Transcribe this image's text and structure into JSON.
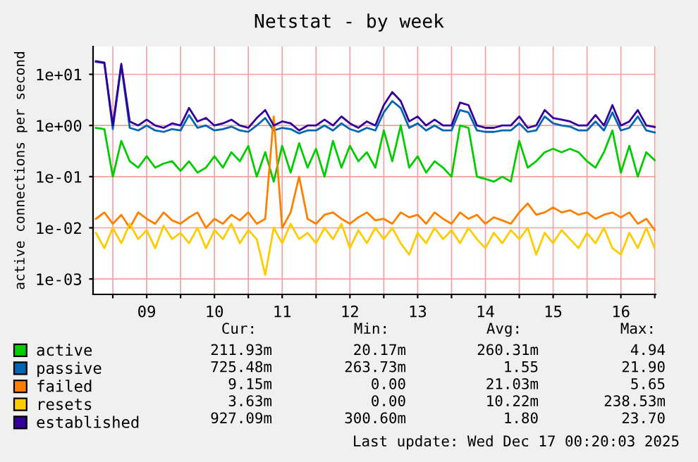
{
  "chart_data": {
    "type": "line",
    "title": "Netstat - by week",
    "ylabel": "active connections per second",
    "x": [
      "2025-12-08T18:00",
      "2025-12-08T21:00",
      "2025-12-09T00:00",
      "2025-12-09T03:00",
      "2025-12-09T06:00",
      "2025-12-09T09:00",
      "2025-12-09T12:00",
      "2025-12-09T15:00",
      "2025-12-09T18:00",
      "2025-12-09T21:00",
      "2025-12-10T00:00",
      "2025-12-10T03:00",
      "2025-12-10T06:00",
      "2025-12-10T09:00",
      "2025-12-10T12:00",
      "2025-12-10T15:00",
      "2025-12-10T18:00",
      "2025-12-10T21:00",
      "2025-12-11T00:00",
      "2025-12-11T03:00",
      "2025-12-11T06:00",
      "2025-12-11T09:00",
      "2025-12-11T12:00",
      "2025-12-11T15:00",
      "2025-12-11T18:00",
      "2025-12-11T21:00",
      "2025-12-12T00:00",
      "2025-12-12T03:00",
      "2025-12-12T06:00",
      "2025-12-12T09:00",
      "2025-12-12T12:00",
      "2025-12-12T15:00",
      "2025-12-12T18:00",
      "2025-12-12T21:00",
      "2025-12-13T00:00",
      "2025-12-13T03:00",
      "2025-12-13T06:00",
      "2025-12-13T09:00",
      "2025-12-13T12:00",
      "2025-12-13T15:00",
      "2025-12-13T18:00",
      "2025-12-13T21:00",
      "2025-12-14T00:00",
      "2025-12-14T03:00",
      "2025-12-14T06:00",
      "2025-12-14T09:00",
      "2025-12-14T12:00",
      "2025-12-14T15:00",
      "2025-12-14T18:00",
      "2025-12-14T21:00",
      "2025-12-15T00:00",
      "2025-12-15T03:00",
      "2025-12-15T06:00",
      "2025-12-15T09:00",
      "2025-12-15T12:00",
      "2025-12-15T15:00",
      "2025-12-15T18:00",
      "2025-12-15T21:00",
      "2025-12-16T00:00",
      "2025-12-16T03:00",
      "2025-12-16T06:00",
      "2025-12-16T09:00",
      "2025-12-16T12:00",
      "2025-12-16T15:00",
      "2025-12-16T18:00",
      "2025-12-16T21:00",
      "2025-12-17T00:00"
    ],
    "series": [
      {
        "name": "active",
        "color": "#00cc00",
        "values": [
          0.9,
          0.85,
          0.1,
          0.5,
          0.2,
          0.15,
          0.25,
          0.15,
          0.18,
          0.2,
          0.13,
          0.2,
          0.12,
          0.15,
          0.25,
          0.15,
          0.3,
          0.2,
          0.4,
          0.1,
          0.3,
          0.08,
          0.4,
          0.12,
          0.45,
          0.15,
          0.35,
          0.1,
          0.5,
          0.15,
          0.4,
          0.2,
          0.3,
          0.15,
          0.8,
          0.2,
          1.0,
          0.15,
          0.25,
          0.12,
          0.2,
          0.15,
          0.1,
          1.0,
          0.9,
          0.1,
          0.09,
          0.08,
          0.1,
          0.08,
          0.5,
          0.15,
          0.2,
          0.3,
          0.35,
          0.3,
          0.35,
          0.3,
          0.2,
          0.15,
          0.3,
          0.8,
          0.12,
          0.4,
          0.1,
          0.3,
          0.21
        ]
      },
      {
        "name": "passive",
        "color": "#0066b3",
        "values": [
          17.5,
          16.5,
          0.85,
          15,
          0.9,
          0.8,
          1.0,
          0.8,
          0.75,
          0.85,
          0.8,
          1.6,
          0.9,
          1.0,
          0.8,
          0.85,
          0.95,
          0.8,
          0.75,
          1.0,
          1.4,
          0.8,
          0.9,
          0.85,
          0.7,
          0.8,
          0.8,
          1.0,
          0.8,
          1.1,
          0.85,
          0.75,
          0.9,
          0.8,
          1.8,
          3.0,
          2.2,
          0.9,
          1.1,
          0.8,
          1.0,
          0.8,
          0.8,
          2.0,
          1.8,
          0.8,
          0.75,
          0.75,
          0.8,
          0.8,
          1.1,
          0.75,
          0.8,
          1.5,
          1.1,
          1.0,
          0.95,
          0.8,
          0.8,
          1.2,
          0.8,
          1.8,
          0.8,
          0.9,
          1.5,
          0.8,
          0.73
        ]
      },
      {
        "name": "failed",
        "color": "#ff8000",
        "values": [
          0.015,
          0.02,
          0.012,
          0.018,
          0.01,
          0.02,
          0.015,
          0.012,
          0.02,
          0.014,
          0.012,
          0.016,
          0.02,
          0.01,
          0.015,
          0.012,
          0.018,
          0.014,
          0.02,
          0.012,
          0.015,
          1.5,
          0.01,
          0.02,
          0.1,
          0.015,
          0.012,
          0.018,
          0.02,
          0.015,
          0.012,
          0.016,
          0.02,
          0.014,
          0.015,
          0.012,
          0.02,
          0.016,
          0.018,
          0.012,
          0.02,
          0.015,
          0.012,
          0.02,
          0.015,
          0.018,
          0.012,
          0.016,
          0.014,
          0.012,
          0.02,
          0.03,
          0.018,
          0.02,
          0.025,
          0.02,
          0.022,
          0.018,
          0.02,
          0.015,
          0.018,
          0.02,
          0.016,
          0.02,
          0.012,
          0.015,
          0.009
        ]
      },
      {
        "name": "resets",
        "color": "#ffcc00",
        "values": [
          0.008,
          0.004,
          0.01,
          0.005,
          0.012,
          0.006,
          0.009,
          0.004,
          0.011,
          0.006,
          0.008,
          0.005,
          0.01,
          0.004,
          0.009,
          0.006,
          0.012,
          0.005,
          0.009,
          0.006,
          0.0012,
          0.01,
          0.005,
          0.012,
          0.006,
          0.008,
          0.005,
          0.01,
          0.006,
          0.012,
          0.004,
          0.009,
          0.005,
          0.01,
          0.006,
          0.01,
          0.005,
          0.003,
          0.008,
          0.005,
          0.01,
          0.006,
          0.009,
          0.005,
          0.01,
          0.006,
          0.004,
          0.008,
          0.005,
          0.009,
          0.006,
          0.01,
          0.003,
          0.008,
          0.005,
          0.009,
          0.006,
          0.004,
          0.008,
          0.005,
          0.01,
          0.004,
          0.003,
          0.008,
          0.004,
          0.01,
          0.004
        ]
      },
      {
        "name": "established",
        "color": "#330099",
        "values": [
          18,
          17,
          1.0,
          16,
          1.2,
          1.0,
          1.3,
          1.0,
          0.9,
          1.1,
          1.0,
          2.2,
          1.2,
          1.4,
          1.0,
          1.1,
          1.3,
          1.0,
          0.9,
          1.4,
          2.0,
          1.0,
          1.2,
          1.1,
          0.8,
          1.0,
          1.0,
          1.3,
          1.0,
          1.5,
          1.1,
          0.9,
          1.2,
          1.0,
          2.5,
          4.5,
          3.0,
          1.2,
          1.5,
          1.0,
          1.3,
          1.0,
          1.0,
          2.8,
          2.5,
          1.0,
          0.9,
          0.9,
          1.0,
          1.0,
          1.5,
          0.9,
          1.0,
          2.0,
          1.4,
          1.3,
          1.2,
          1.0,
          1.0,
          1.6,
          1.0,
          2.5,
          1.0,
          1.2,
          2.0,
          1.0,
          0.93
        ]
      }
    ],
    "log": "y",
    "ylim": [
      0.0005,
      35
    ],
    "yticks": [
      {
        "value": 0.001,
        "label": "1e-03"
      },
      {
        "value": 0.01,
        "label": "1e-02"
      },
      {
        "value": 0.1,
        "label": "1e-01"
      },
      {
        "value": 1,
        "label": "1e+00"
      },
      {
        "value": 10,
        "label": "1e+01"
      }
    ],
    "xlim": [
      "2025-12-08T17:00",
      "2025-12-17T00:20"
    ],
    "xticks": [
      {
        "value": "2025-12-09T00:00",
        "label": null
      },
      {
        "value": "2025-12-09T12:00",
        "label": "09"
      },
      {
        "value": "2025-12-10T00:00",
        "label": null
      },
      {
        "value": "2025-12-10T12:00",
        "label": "10"
      },
      {
        "value": "2025-12-11T00:00",
        "label": null
      },
      {
        "value": "2025-12-11T12:00",
        "label": "11"
      },
      {
        "value": "2025-12-12T00:00",
        "label": null
      },
      {
        "value": "2025-12-12T12:00",
        "label": "12"
      },
      {
        "value": "2025-12-13T00:00",
        "label": null
      },
      {
        "value": "2025-12-13T12:00",
        "label": "13"
      },
      {
        "value": "2025-12-14T00:00",
        "label": null
      },
      {
        "value": "2025-12-14T12:00",
        "label": "14"
      },
      {
        "value": "2025-12-15T00:00",
        "label": null
      },
      {
        "value": "2025-12-15T12:00",
        "label": "15"
      },
      {
        "value": "2025-12-16T00:00",
        "label": null
      },
      {
        "value": "2025-12-16T12:00",
        "label": "16"
      },
      {
        "value": "2025-12-17T00:00",
        "label": null
      }
    ],
    "grid": true,
    "legend": "bottom",
    "line_style": "solid",
    "annotations": [
      "Cur:",
      "Min:",
      "Avg:",
      "Max:",
      "211.93m",
      "20.17m",
      "260.31m",
      "4.94",
      "725.48m",
      "263.73m",
      "1.55",
      "21.90",
      "9.15m",
      "0.00",
      "21.03m",
      "5.65",
      "3.63m",
      "0.00",
      "10.22m",
      "238.53m",
      "927.09m",
      "300.60m",
      "1.80",
      "23.70",
      "Last update: Wed Dec 17 00:20:03 2025"
    ]
  }
}
